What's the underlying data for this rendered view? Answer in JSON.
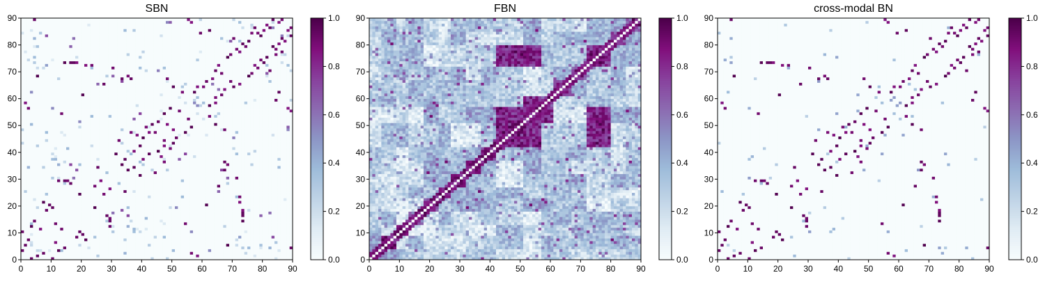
{
  "chart_data": [
    {
      "type": "heatmap",
      "title": "SBN",
      "xlabel": "",
      "ylabel": "",
      "xlim": [
        0,
        90
      ],
      "ylim": [
        0,
        90
      ],
      "xticks": [
        "0",
        "10",
        "20",
        "30",
        "40",
        "50",
        "60",
        "70",
        "80",
        "90"
      ],
      "yticks": [
        "0",
        "10",
        "20",
        "30",
        "40",
        "50",
        "60",
        "70",
        "80",
        "90"
      ],
      "colorbar_ticks": [
        "0.0",
        "0.2",
        "0.4",
        "0.6",
        "0.8",
        "1.0"
      ],
      "value_range": [
        0,
        1
      ],
      "colormap": [
        "#f7fcfd",
        "#e0ecf4",
        "#bfd3e6",
        "#9ebcda",
        "#8c96c6",
        "#8c6bb1",
        "#88419d",
        "#810f7c",
        "#4d004b"
      ],
      "matrix_size": 90,
      "pattern": "sparse_symmetric"
    },
    {
      "type": "heatmap",
      "title": "FBN",
      "xlabel": "",
      "ylabel": "",
      "xlim": [
        0,
        90
      ],
      "ylim": [
        0,
        90
      ],
      "xticks": [
        "0",
        "10",
        "20",
        "30",
        "40",
        "50",
        "60",
        "70",
        "80",
        "90"
      ],
      "yticks": [
        "0",
        "10",
        "20",
        "30",
        "40",
        "50",
        "60",
        "70",
        "80",
        "90"
      ],
      "colorbar_ticks": [
        "0.0",
        "0.2",
        "0.4",
        "0.6",
        "0.8",
        "1.0"
      ],
      "value_range": [
        0,
        1
      ],
      "colormap": [
        "#f7fcfd",
        "#e0ecf4",
        "#bfd3e6",
        "#9ebcda",
        "#8c96c6",
        "#8c6bb1",
        "#88419d",
        "#810f7c",
        "#4d004b"
      ],
      "matrix_size": 90,
      "pattern": "dense_symmetric_with_diagonal"
    },
    {
      "type": "heatmap",
      "title": "cross-modal BN",
      "xlabel": "",
      "ylabel": "",
      "xlim": [
        0,
        90
      ],
      "ylim": [
        0,
        90
      ],
      "xticks": [
        "0",
        "10",
        "20",
        "30",
        "40",
        "50",
        "60",
        "70",
        "80",
        "90"
      ],
      "yticks": [
        "0",
        "10",
        "20",
        "30",
        "40",
        "50",
        "60",
        "70",
        "80",
        "90"
      ],
      "colorbar_ticks": [
        "0.0",
        "0.2",
        "0.4",
        "0.6",
        "0.8",
        "1.0"
      ],
      "value_range": [
        0,
        1
      ],
      "colormap": [
        "#f7fcfd",
        "#e0ecf4",
        "#bfd3e6",
        "#9ebcda",
        "#8c96c6",
        "#8c6bb1",
        "#88419d",
        "#810f7c",
        "#4d004b"
      ],
      "matrix_size": 90,
      "pattern": "sparse_symmetric"
    }
  ]
}
